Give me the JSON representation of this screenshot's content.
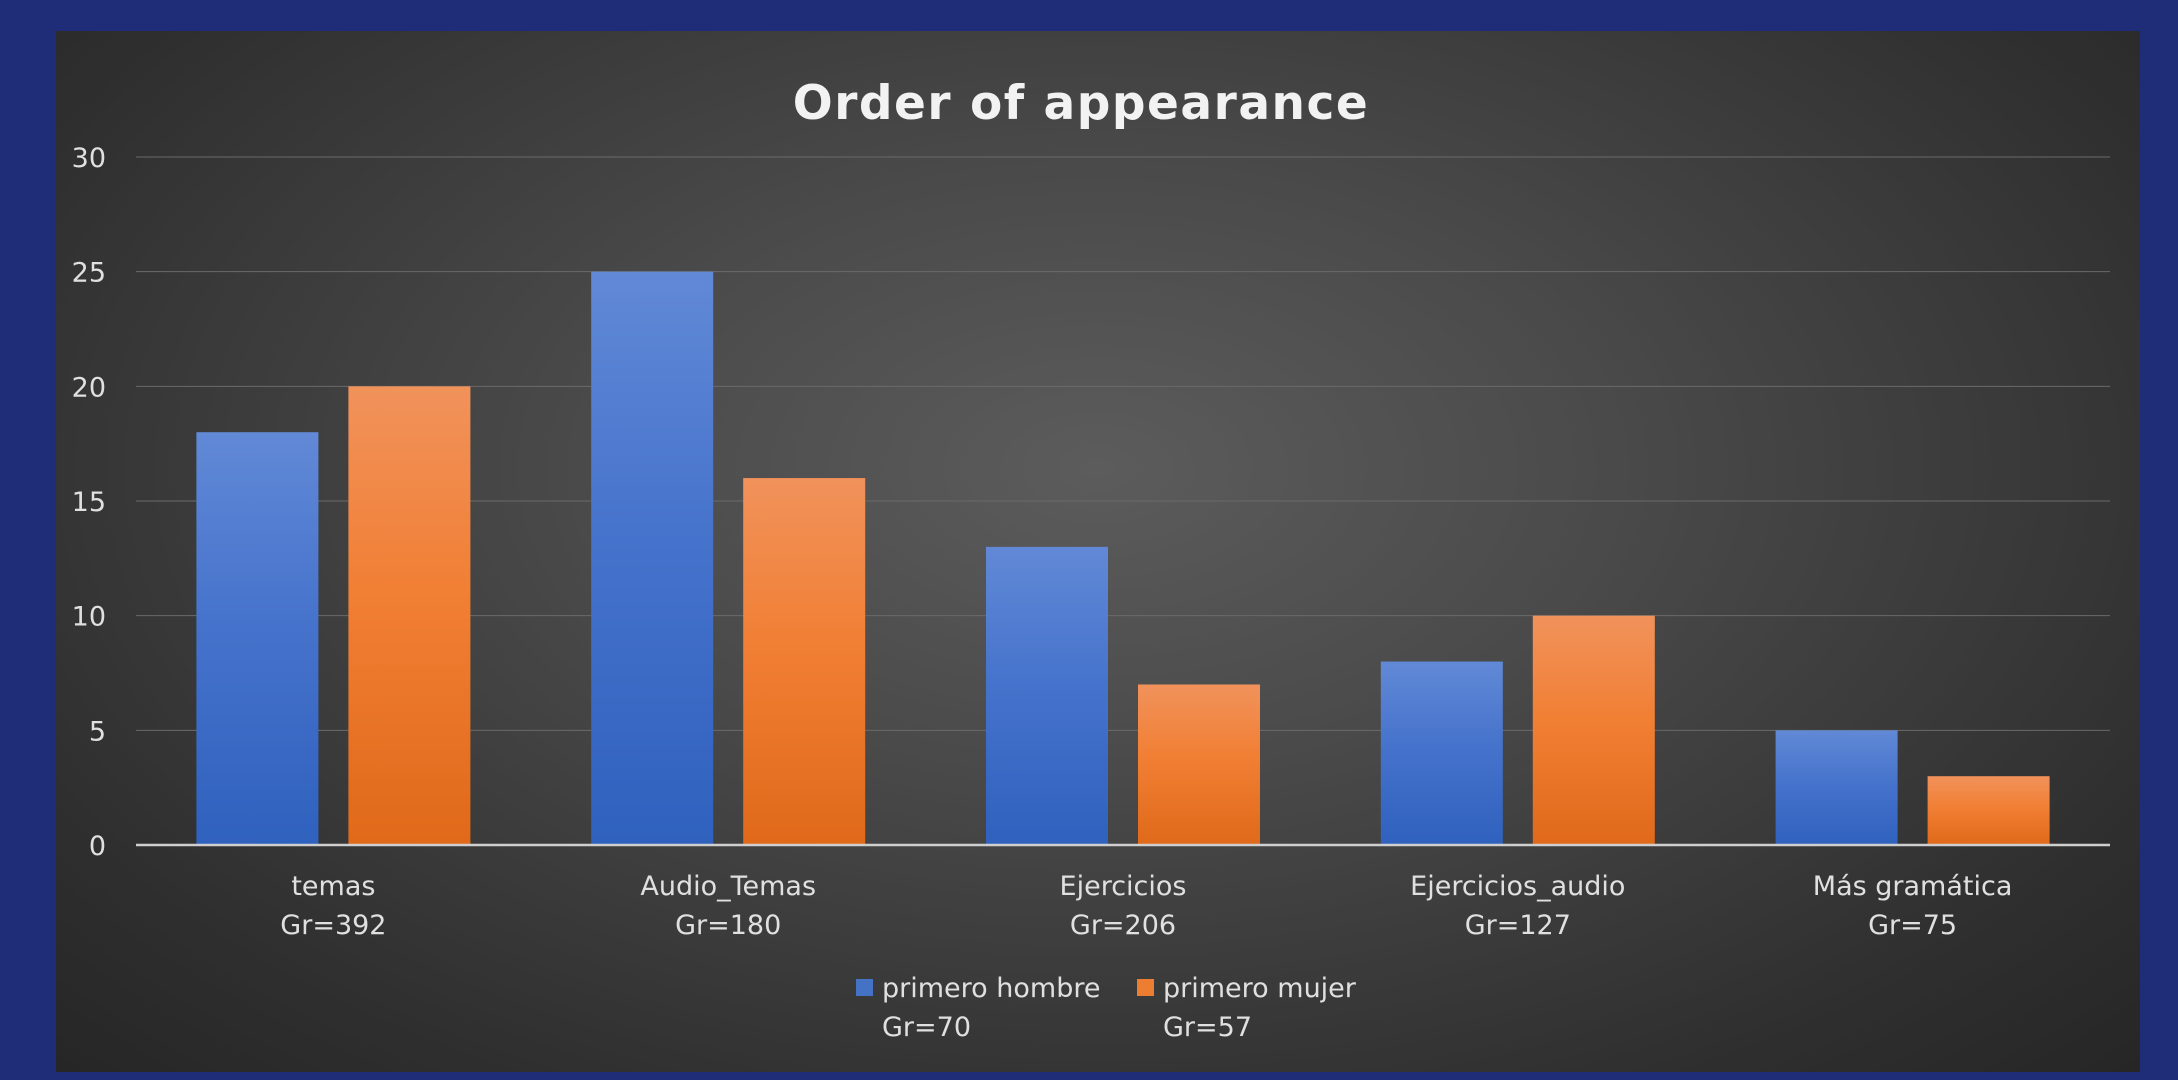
{
  "chart_data": {
    "type": "bar",
    "title": "Order of appearance",
    "categories": [
      [
        "temas",
        "Gr=392"
      ],
      [
        "Audio_Temas",
        "Gr=180"
      ],
      [
        "Ejercicios",
        "Gr=206"
      ],
      [
        "Ejercicios_audio",
        "Gr=127"
      ],
      [
        "Más gramática",
        "Gr=75"
      ]
    ],
    "series": [
      {
        "name": [
          "primero hombre",
          "Gr=70"
        ],
        "values": [
          18,
          25,
          13,
          8,
          5
        ],
        "color": "#4472c4"
      },
      {
        "name": [
          "primero mujer",
          "Gr=57"
        ],
        "values": [
          20,
          16,
          7,
          10,
          3
        ],
        "color": "#ed7d31"
      }
    ],
    "ylim": [
      0,
      30
    ],
    "yticks": [
      0,
      5,
      10,
      15,
      20,
      25,
      30
    ],
    "xlabel": "",
    "ylabel": "",
    "grid": true,
    "legend": "bottom"
  }
}
